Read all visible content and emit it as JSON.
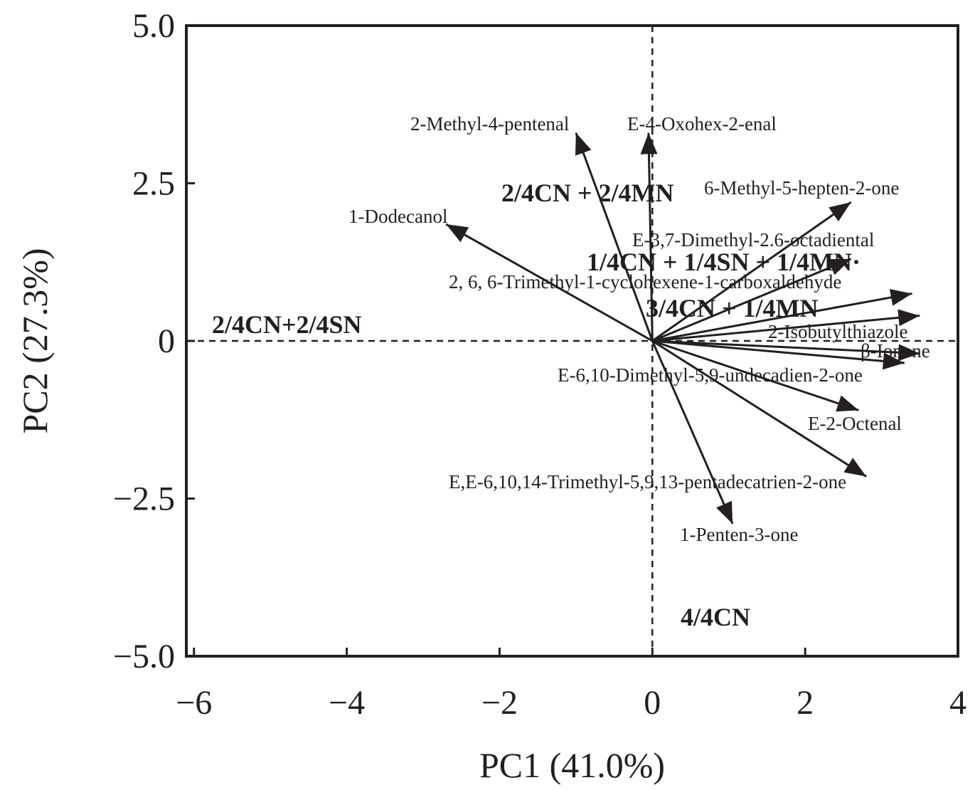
{
  "chart_data": {
    "type": "scatter",
    "subtype": "biplot",
    "title": "",
    "xlabel": "PC1 (41.0%)",
    "ylabel": "PC2 (27.3%)",
    "xlim": [
      -6.1,
      4.0
    ],
    "ylim": [
      -5.0,
      5.0
    ],
    "xticks": [
      -6,
      -4,
      -2,
      0,
      2,
      4
    ],
    "xtick_labels": [
      "−6",
      "−4",
      "−2",
      "0",
      "2",
      "4"
    ],
    "yticks": [
      -5.0,
      -2.5,
      0,
      2.5,
      5.0
    ],
    "ytick_labels": [
      "−5.0",
      "−2.5",
      "0",
      "2.5",
      "5.0"
    ],
    "reference_lines": {
      "x": 0,
      "y": 0,
      "style": "dashed"
    },
    "grid": false,
    "colors": {
      "ink": "#231f20"
    },
    "loadings": [
      {
        "name": "2-Methyl-4-pentenal",
        "x": -1.0,
        "y": 3.3
      },
      {
        "name": "E-4-Oxohex-2-enal",
        "x": -0.05,
        "y": 3.3
      },
      {
        "name": "1-Dodecanol",
        "x": -2.7,
        "y": 1.85
      },
      {
        "name": "6-Methyl-5-hepten-2-one",
        "x": 2.6,
        "y": 2.2
      },
      {
        "name": "E-3,7-Dimethyl-2.6-octadiental",
        "x": 2.6,
        "y": 1.3
      },
      {
        "name": "2, 6, 6-Trimethyl-1-cyclohexene-1-carboxaldehyde",
        "x": 3.4,
        "y": 0.75
      },
      {
        "name": "2-Isobutylthiazole",
        "x": 3.5,
        "y": 0.4
      },
      {
        "name": "β-Ionone",
        "x": 3.5,
        "y": -0.2
      },
      {
        "name": "E-6,10-Dimethyl-5,9-undecadien-2-one",
        "x": 3.3,
        "y": -0.35
      },
      {
        "name": "E-2-Octenal",
        "x": 2.7,
        "y": -1.1
      },
      {
        "name": "E,E-6,10,14-Trimethyl-5,9,13-pentadecatrien-2-one",
        "x": 2.8,
        "y": -2.15
      },
      {
        "name": "1-Penten-3-one",
        "x": 1.05,
        "y": -2.9
      }
    ],
    "samples": [
      {
        "name": "2/4CN + 2/4MN",
        "x": -1.1,
        "y": 2.35
      },
      {
        "name": "1/4CN + 1/4SN + 1/4MN·",
        "x": -0.8,
        "y": 1.25
      },
      {
        "name": "3/4CN + 1/4MN",
        "x": 0.0,
        "y": 0.45
      },
      {
        "name": "2/4CN+2/4SN",
        "x": -5.7,
        "y": 0.15
      },
      {
        "name": "4/4CN",
        "x": 0.4,
        "y": -4.5
      }
    ]
  }
}
